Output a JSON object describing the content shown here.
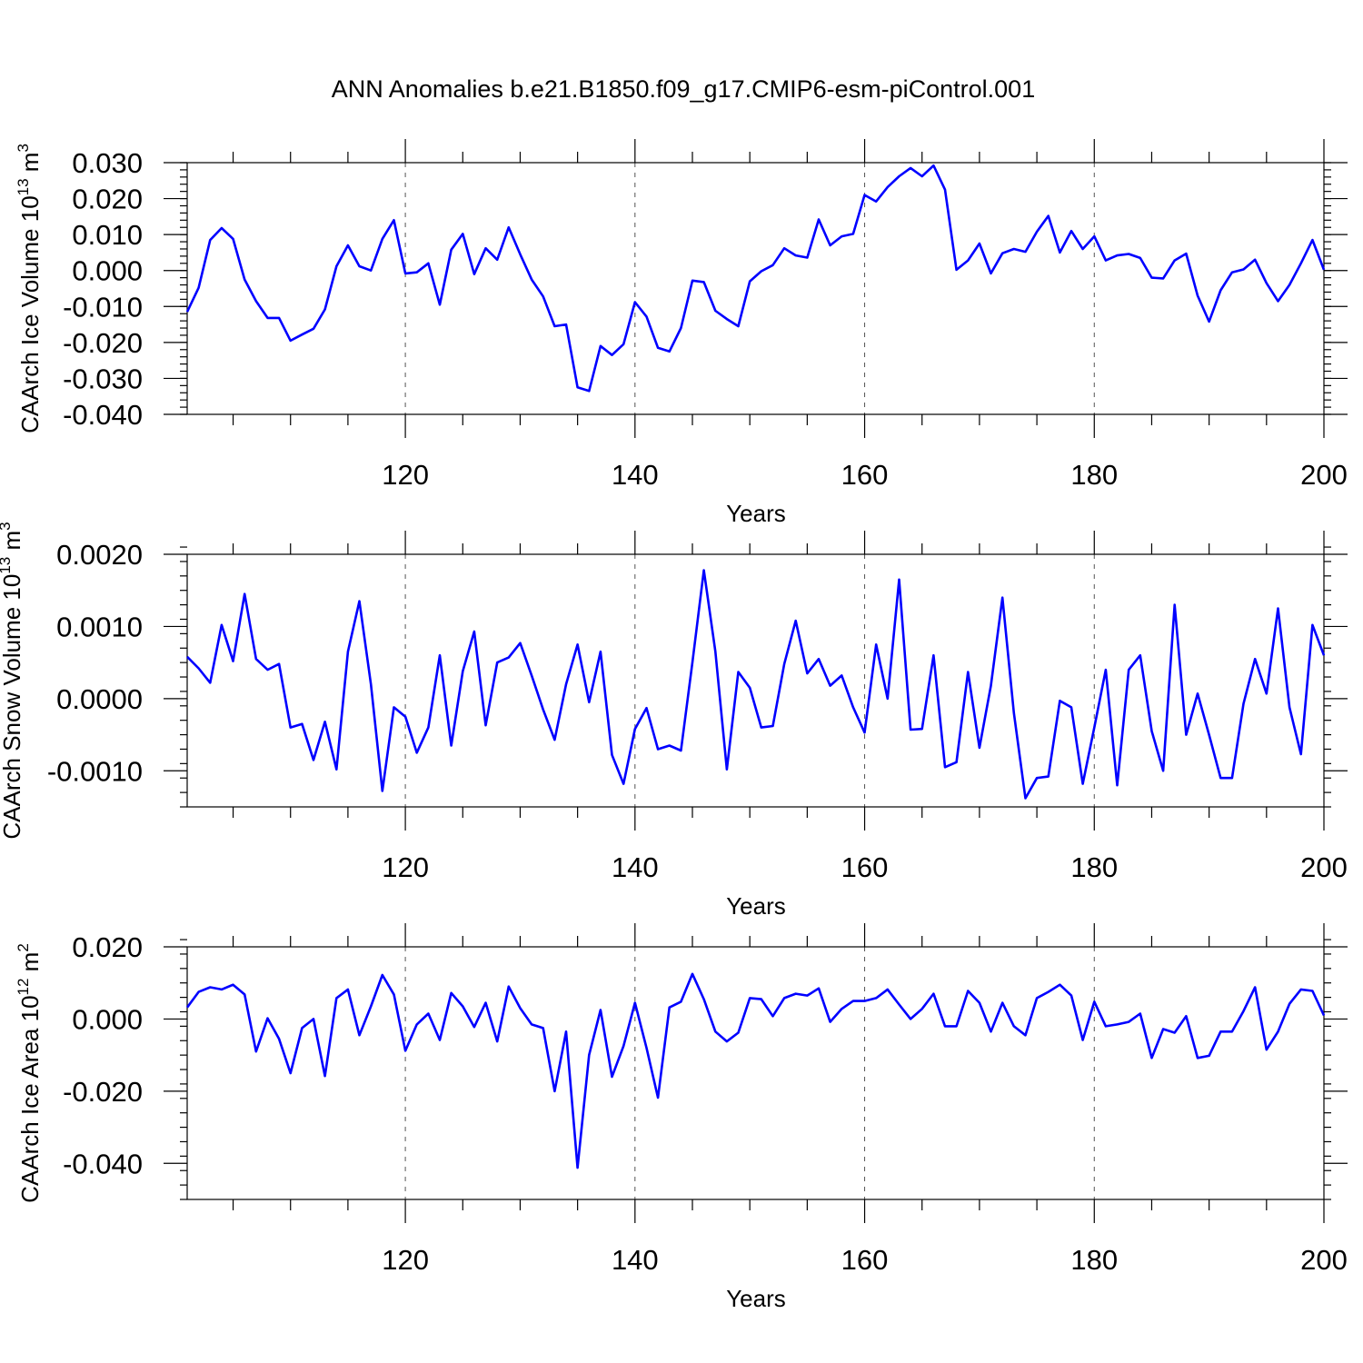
{
  "figure": {
    "title": "ANN Anomalies b.e21.B1850.f09_g17.CMIP6-esm-piControl.001",
    "line_color": "#0000ff"
  },
  "chart_data": [
    {
      "type": "line",
      "title": "ANN Anomalies b.e21.B1850.f09_g17.CMIP6-esm-piControl.001",
      "ylabel_main": "CAArch Ice Volume 10",
      "ylabel_sup1": "13",
      "ylabel_mid": " m",
      "ylabel_sup2": "3",
      "xlabel": "Years",
      "xlim": [
        101,
        200
      ],
      "ylim": [
        -0.04,
        0.03
      ],
      "yticks": [
        "0.030",
        "0.020",
        "0.010",
        "0.000",
        "-0.010",
        "-0.020",
        "-0.030",
        "-0.040"
      ],
      "ytick_values": [
        0.03,
        0.02,
        0.01,
        0.0,
        -0.01,
        -0.02,
        -0.03,
        -0.04
      ],
      "yminor_step": 0.002,
      "xticks": [
        "120",
        "140",
        "160",
        "180",
        "200"
      ],
      "xtick_values": [
        120,
        140,
        160,
        180,
        200
      ],
      "grid_x": [
        120,
        140,
        160,
        180
      ],
      "x_start": 101,
      "values": [
        -0.0115,
        -0.0048,
        0.0085,
        0.0118,
        0.0088,
        -0.0025,
        -0.0085,
        -0.0132,
        -0.0132,
        -0.0195,
        -0.0178,
        -0.0162,
        -0.0108,
        0.0012,
        0.007,
        0.0012,
        0.0,
        0.0088,
        0.014,
        -0.0008,
        -0.0005,
        0.002,
        -0.0095,
        0.0058,
        0.0102,
        -0.001,
        0.0062,
        0.003,
        0.012,
        0.0045,
        -0.0025,
        -0.0072,
        -0.0155,
        -0.015,
        -0.0325,
        -0.0335,
        -0.021,
        -0.0235,
        -0.0205,
        -0.0088,
        -0.0128,
        -0.0215,
        -0.0225,
        -0.016,
        -0.0028,
        -0.0032,
        -0.0112,
        -0.0135,
        -0.0155,
        -0.003,
        -0.0002,
        0.0015,
        0.0062,
        0.0042,
        0.0036,
        0.0142,
        0.007,
        0.0095,
        0.0102,
        0.021,
        0.0192,
        0.0232,
        0.0262,
        0.0285,
        0.0262,
        0.0292,
        0.0225,
        0.0002,
        0.0028,
        0.0075,
        -0.0008,
        0.0048,
        0.006,
        0.0052,
        0.0108,
        0.0152,
        0.005,
        0.011,
        0.006,
        0.0095,
        0.0028,
        0.0042,
        0.0046,
        0.0035,
        -0.002,
        -0.0022,
        0.0028,
        0.0047,
        -0.007,
        -0.0142,
        -0.0055,
        -0.0005,
        0.0003,
        0.003,
        -0.0035,
        -0.0085,
        -0.004,
        0.002,
        0.0085,
        0.0002
      ]
    },
    {
      "type": "line",
      "ylabel_main": "CAArch Snow Volume 10",
      "ylabel_sup1": "13",
      "ylabel_mid": " m",
      "ylabel_sup2": "3",
      "xlabel": "Years",
      "xlim": [
        101,
        200
      ],
      "ylim": [
        -0.0015,
        0.002
      ],
      "yticks": [
        "0.0020",
        "0.0010",
        "0.0000",
        "-0.0010"
      ],
      "ytick_values": [
        0.002,
        0.001,
        0.0,
        -0.001
      ],
      "yminor_step": 0.0002,
      "xticks": [
        "120",
        "140",
        "160",
        "180",
        "200"
      ],
      "xtick_values": [
        120,
        140,
        160,
        180,
        200
      ],
      "grid_x": [
        120,
        140,
        160,
        180
      ],
      "x_start": 101,
      "values": [
        0.00058,
        0.00042,
        0.00022,
        0.00102,
        0.00052,
        0.00145,
        0.00055,
        0.0004,
        0.00048,
        -0.0004,
        -0.00035,
        -0.00085,
        -0.00032,
        -0.00098,
        0.00065,
        0.00135,
        0.0002,
        -0.00128,
        -0.00012,
        -0.00025,
        -0.00075,
        -0.0004,
        0.0006,
        -0.00065,
        0.00038,
        0.00093,
        -0.00037,
        0.0005,
        0.00057,
        0.00077,
        0.00032,
        -0.00015,
        -0.00057,
        0.0002,
        0.00075,
        -5e-05,
        0.00065,
        -0.00078,
        -0.00118,
        -0.00042,
        -0.00013,
        -0.0007,
        -0.00065,
        -0.00072,
        0.0005,
        0.00178,
        0.00065,
        -0.00098,
        0.00037,
        0.00015,
        -0.0004,
        -0.00038,
        0.00048,
        0.00108,
        0.00035,
        0.00055,
        0.00018,
        0.00032,
        -0.00012,
        -0.00047,
        0.00075,
        0.0,
        0.00165,
        -0.00043,
        -0.00042,
        0.0006,
        -0.00095,
        -0.00088,
        0.00037,
        -0.00068,
        0.00018,
        0.0014,
        -0.0002,
        -0.00138,
        -0.0011,
        -0.00108,
        -3e-05,
        -0.00012,
        -0.00118,
        -0.0004,
        0.0004,
        -0.0012,
        0.0004,
        0.0006,
        -0.00045,
        -0.001,
        0.0013,
        -0.0005,
        7e-05,
        -0.0005,
        -0.0011,
        -0.0011,
        -7e-05,
        0.00055,
        7e-05,
        0.00125,
        -0.00012,
        -0.00077,
        0.00102,
        0.0006
      ]
    },
    {
      "type": "line",
      "ylabel_main": "CAArch Ice Area 10",
      "ylabel_sup1": "12",
      "ylabel_mid": " m",
      "ylabel_sup2": "2",
      "xlabel": "Years",
      "xlim": [
        101,
        200
      ],
      "ylim": [
        -0.05,
        0.02
      ],
      "yticks": [
        "0.020",
        "0.000",
        "-0.020",
        "-0.040"
      ],
      "ytick_values": [
        0.02,
        0.0,
        -0.02,
        -0.04
      ],
      "yminor_step": 0.004,
      "xticks": [
        "120",
        "140",
        "160",
        "180",
        "200"
      ],
      "xtick_values": [
        120,
        140,
        160,
        180,
        200
      ],
      "grid_x": [
        120,
        140,
        160,
        180
      ],
      "x_start": 101,
      "values": [
        0.0032,
        0.0075,
        0.0088,
        0.0082,
        0.0095,
        0.0068,
        -0.009,
        0.0002,
        -0.0055,
        -0.015,
        -0.0025,
        0.0,
        -0.0158,
        0.0058,
        0.0082,
        -0.0045,
        0.0035,
        0.0122,
        0.0068,
        -0.0088,
        -0.0015,
        0.0015,
        -0.0058,
        0.0072,
        0.0035,
        -0.0022,
        0.0045,
        -0.0062,
        0.009,
        0.003,
        -0.0015,
        -0.0025,
        -0.02,
        -0.0035,
        -0.0412,
        -0.01,
        0.0025,
        -0.016,
        -0.0075,
        0.0045,
        -0.008,
        -0.0218,
        0.0032,
        0.0048,
        0.0125,
        0.0055,
        -0.0035,
        -0.0062,
        -0.0038,
        0.0058,
        0.0055,
        0.0008,
        0.0058,
        0.007,
        0.0065,
        0.0085,
        -0.0008,
        0.0028,
        0.005,
        0.005,
        0.0058,
        0.0082,
        0.004,
        0.0,
        0.0028,
        0.007,
        -0.002,
        -0.002,
        0.0078,
        0.0045,
        -0.0035,
        0.0045,
        -0.002,
        -0.0045,
        0.0058,
        0.0075,
        0.0095,
        0.0065,
        -0.0058,
        0.0048,
        -0.002,
        -0.0015,
        -0.0008,
        0.0015,
        -0.0108,
        -0.0028,
        -0.0038,
        0.0008,
        -0.0108,
        -0.0102,
        -0.0035,
        -0.0035,
        0.0022,
        0.0088,
        -0.0085,
        -0.0035,
        0.0042,
        0.0082,
        0.0078,
        0.001
      ]
    }
  ]
}
